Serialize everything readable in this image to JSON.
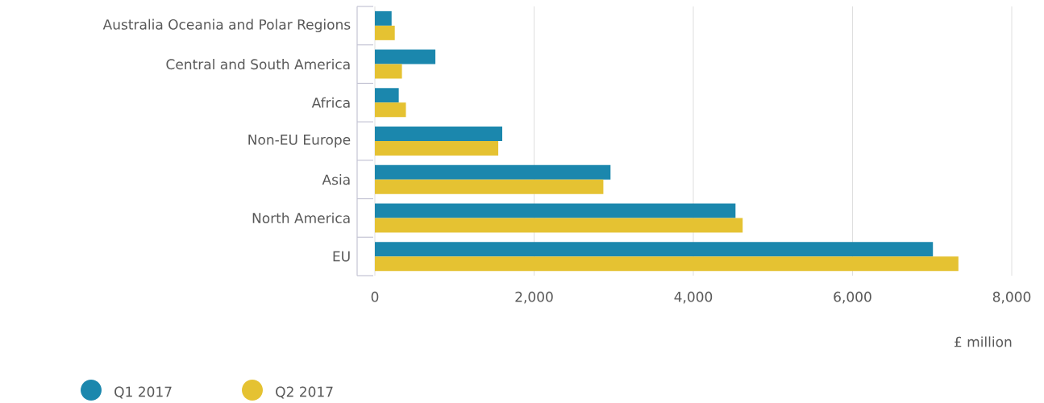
{
  "chart_data": {
    "type": "bar",
    "orientation": "horizontal",
    "xlabel": "£ million",
    "categories": [
      "Australia Oceania and Polar Regions",
      "Central and South America",
      "Africa",
      "Non-EU Europe",
      "Asia",
      "North America",
      "EU"
    ],
    "series": [
      {
        "name": "Q1 2017",
        "color": "#1b87ad",
        "values": [
          210,
          760,
          300,
          1600,
          2960,
          4530,
          7010
        ]
      },
      {
        "name": "Q2 2017",
        "color": "#e5c232",
        "values": [
          250,
          340,
          390,
          1550,
          2870,
          4620,
          7330
        ]
      }
    ],
    "xlim": [
      0,
      8000
    ],
    "xticks": [
      {
        "value": 0,
        "label": "0"
      },
      {
        "value": 2000,
        "label": "2,000"
      },
      {
        "value": 4000,
        "label": "4,000"
      },
      {
        "value": 6000,
        "label": "6,000"
      },
      {
        "value": 8000,
        "label": "8,000"
      }
    ],
    "grid": "x",
    "legend": "bottom left"
  }
}
